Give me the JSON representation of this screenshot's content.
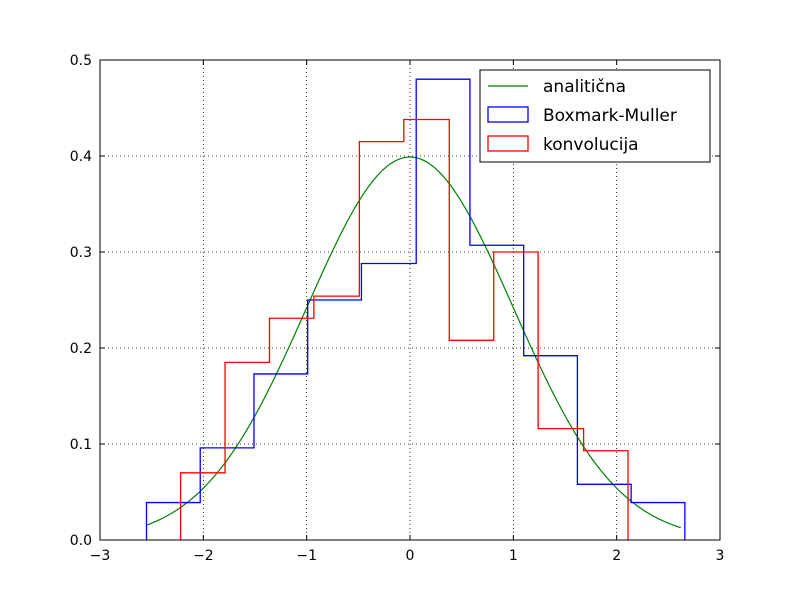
{
  "chart_data": {
    "type": "histogram",
    "title": "",
    "xlabel": "",
    "ylabel": "",
    "xlim": [
      -3,
      3
    ],
    "ylim": [
      0,
      0.5
    ],
    "grid": true,
    "grid_style": "dotted",
    "legend_position": "top-right",
    "xticks": [
      -3,
      -2,
      -1,
      0,
      1,
      2,
      3
    ],
    "xtick_labels": [
      "−3",
      "−2",
      "−1",
      "0",
      "1",
      "2",
      "3"
    ],
    "yticks": [
      0.0,
      0.1,
      0.2,
      0.3,
      0.4,
      0.5
    ],
    "ytick_labels": [
      "0.0",
      "0.1",
      "0.2",
      "0.3",
      "0.4",
      "0.5"
    ],
    "series": [
      {
        "name": "analitična",
        "kind": "curve",
        "color": "#008000",
        "function": "standard-normal-pdf",
        "x_range": [
          -2.55,
          2.62
        ]
      },
      {
        "name": "Boxmark-Muller",
        "kind": "step-histogram",
        "color": "#0000ff",
        "edges": [
          -2.55,
          -2.03,
          -1.51,
          -0.99,
          -0.47,
          0.06,
          0.58,
          1.1,
          1.62,
          2.14,
          2.66
        ],
        "values": [
          0.039,
          0.096,
          0.173,
          0.25,
          0.288,
          0.48,
          0.307,
          0.192,
          0.058,
          0.039
        ]
      },
      {
        "name": "konvolucija",
        "kind": "step-histogram",
        "color": "#ff0000",
        "edges": [
          -2.22,
          -1.79,
          -1.36,
          -0.93,
          -0.49,
          -0.06,
          0.38,
          0.81,
          1.24,
          1.68,
          2.11
        ],
        "values": [
          0.07,
          0.185,
          0.231,
          0.254,
          0.415,
          0.438,
          0.208,
          0.3,
          0.116,
          0.093
        ]
      }
    ]
  }
}
